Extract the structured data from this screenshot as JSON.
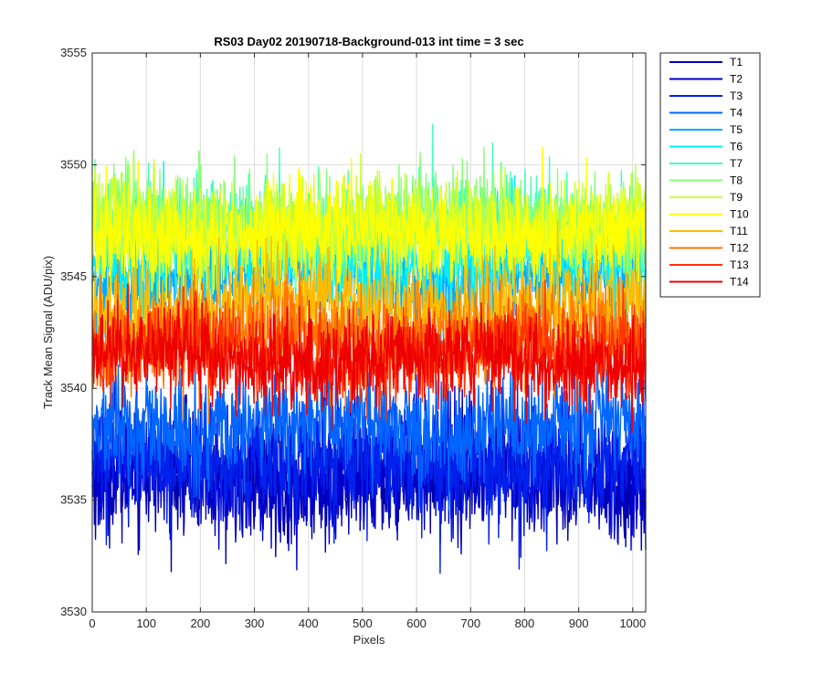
{
  "chart_data": {
    "type": "line",
    "title": "RS03 Day02 20190718-Background-013 int time = 3 sec",
    "xlabel": "Pixels",
    "ylabel": "Track Mean Signal (ADU/pix)",
    "xlim": [
      0,
      1024
    ],
    "ylim": [
      3530,
      3555
    ],
    "x_ticks": [
      0,
      100,
      200,
      300,
      400,
      500,
      600,
      700,
      800,
      900,
      1000
    ],
    "y_ticks": [
      3530,
      3535,
      3540,
      3545,
      3550,
      3555
    ],
    "grid": true,
    "legend_position": "outside-top-right",
    "n_points": 1024,
    "series": [
      {
        "name": "T1",
        "color": "#0000AA",
        "mean": 3536.0,
        "spread": 1.3
      },
      {
        "name": "T2",
        "color": "#0000CC",
        "mean": 3536.2,
        "spread": 1.3
      },
      {
        "name": "T3",
        "color": "#0022EE",
        "mean": 3536.8,
        "spread": 1.3
      },
      {
        "name": "T4",
        "color": "#0066FF",
        "mean": 3538.3,
        "spread": 1.2
      },
      {
        "name": "T5",
        "color": "#00AAFF",
        "mean": 3545.0,
        "spread": 1.1
      },
      {
        "name": "T6",
        "color": "#00EEFF",
        "mean": 3545.8,
        "spread": 1.1
      },
      {
        "name": "T7",
        "color": "#44FFBB",
        "mean": 3547.2,
        "spread": 1.1
      },
      {
        "name": "T8",
        "color": "#88FF77",
        "mean": 3547.3,
        "spread": 1.1
      },
      {
        "name": "T9",
        "color": "#CCFF33",
        "mean": 3547.2,
        "spread": 1.1
      },
      {
        "name": "T10",
        "color": "#FFFF00",
        "mean": 3546.9,
        "spread": 1.1
      },
      {
        "name": "T11",
        "color": "#FFBB00",
        "mean": 3543.6,
        "spread": 1.1
      },
      {
        "name": "T12",
        "color": "#FF7700",
        "mean": 3542.4,
        "spread": 1.1
      },
      {
        "name": "T13",
        "color": "#FF3300",
        "mean": 3541.6,
        "spread": 1.0
      },
      {
        "name": "T14",
        "color": "#EE0000",
        "mean": 3541.3,
        "spread": 1.0
      }
    ]
  }
}
